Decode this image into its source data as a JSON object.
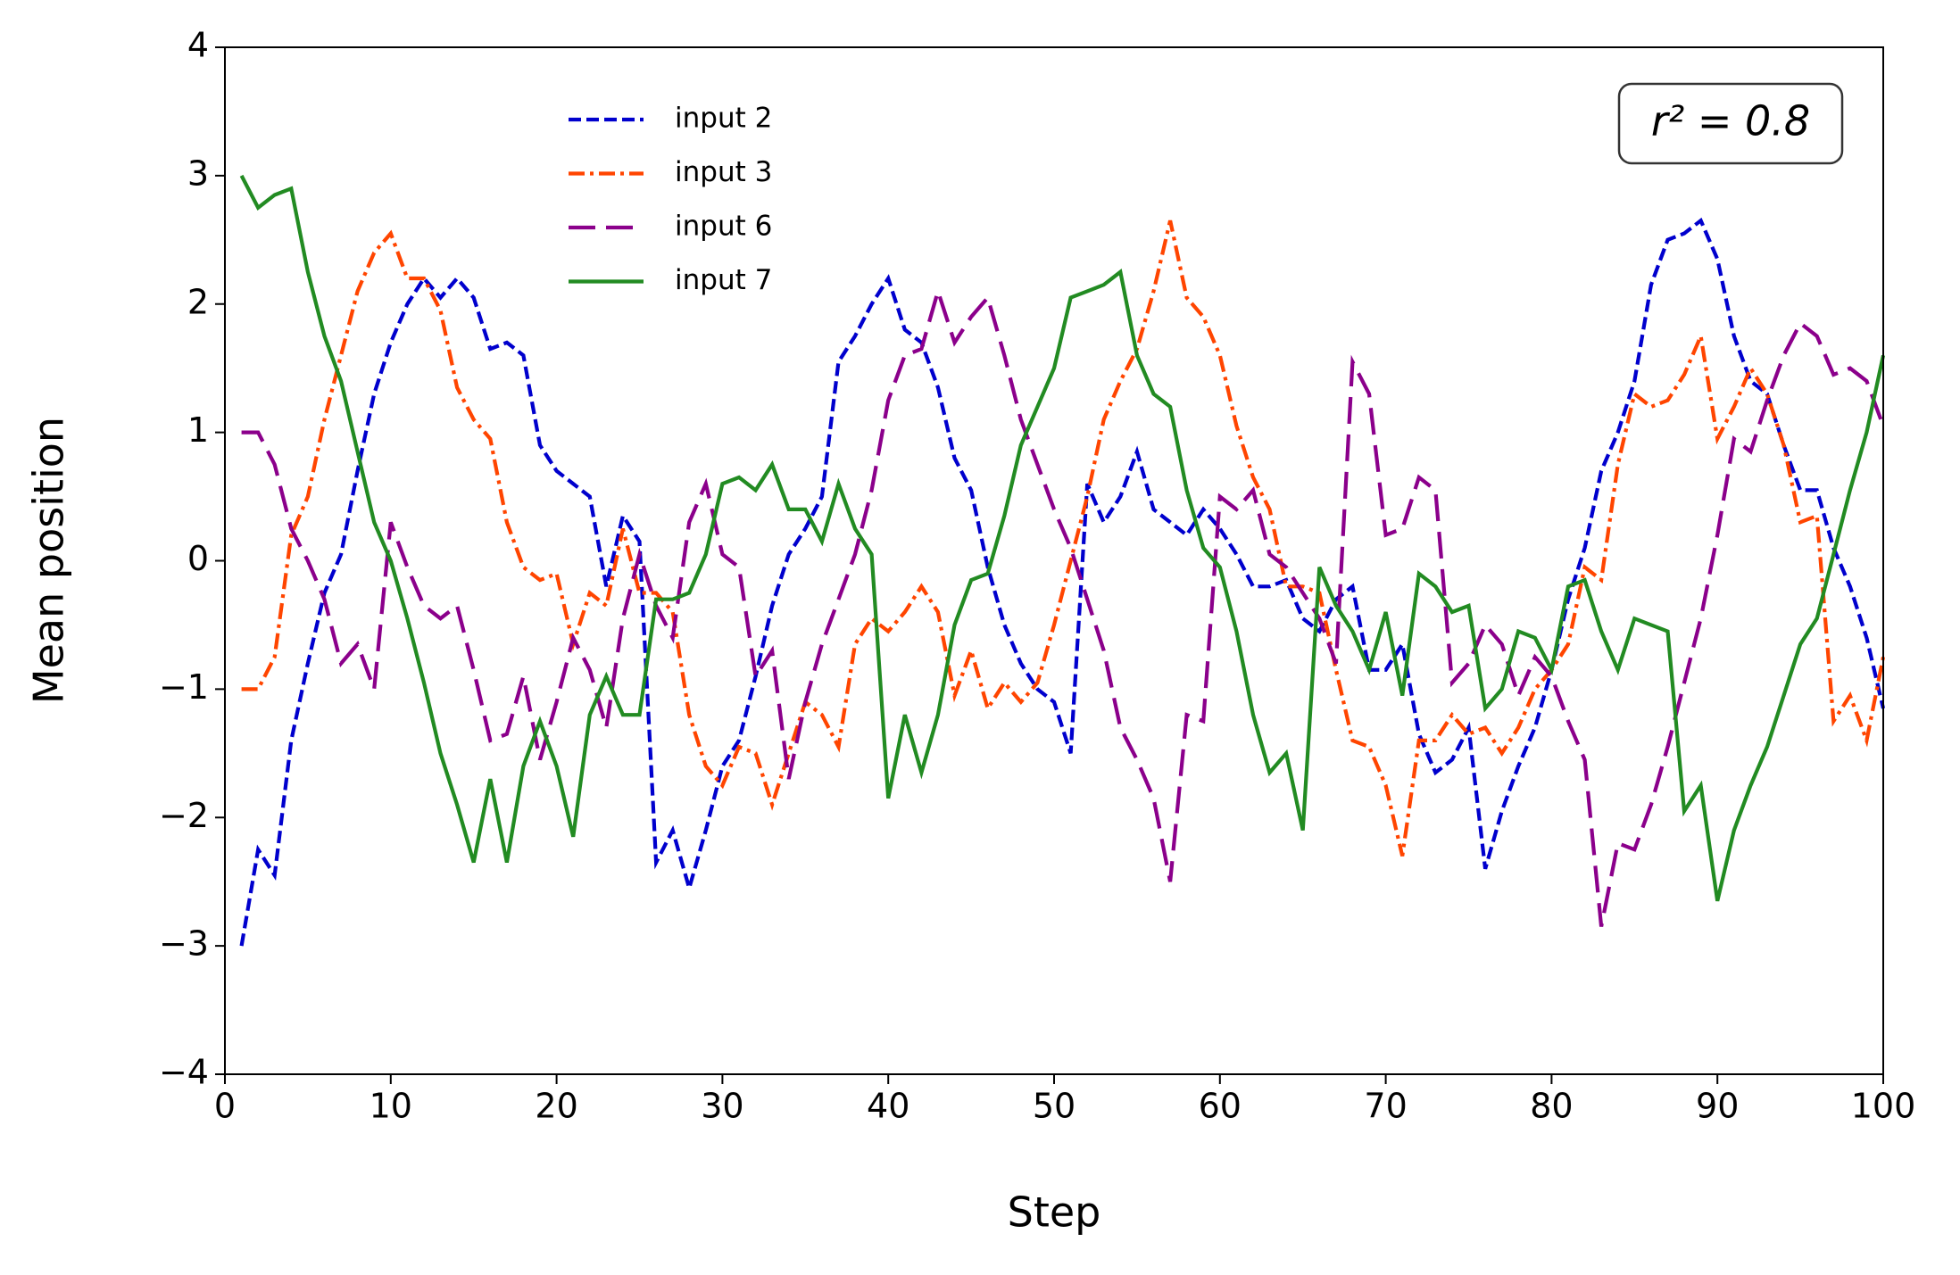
{
  "chart_data": {
    "type": "line",
    "xlabel": "Step",
    "ylabel": "Mean position",
    "annotation": "r² = 0.8",
    "legend": "upper left",
    "xlim": [
      0,
      100
    ],
    "ylim": [
      -4,
      4
    ],
    "xticks": [
      0,
      10,
      20,
      30,
      40,
      50,
      60,
      70,
      80,
      90,
      100
    ],
    "yticks": [
      {
        "value": -4,
        "label": "−4"
      },
      {
        "value": -3,
        "label": "−3"
      },
      {
        "value": -2,
        "label": "−2"
      },
      {
        "value": -1,
        "label": "−1"
      },
      0,
      1,
      2,
      3,
      4
    ],
    "x": [
      1,
      2,
      3,
      4,
      5,
      6,
      7,
      8,
      9,
      10,
      11,
      12,
      13,
      14,
      15,
      16,
      17,
      18,
      19,
      20,
      21,
      22,
      23,
      24,
      25,
      26,
      27,
      28,
      29,
      30,
      31,
      32,
      33,
      34,
      35,
      36,
      37,
      38,
      39,
      40,
      41,
      42,
      43,
      44,
      45,
      46,
      47,
      48,
      49,
      50,
      51,
      52,
      53,
      54,
      55,
      56,
      57,
      58,
      59,
      60,
      61,
      62,
      63,
      64,
      65,
      66,
      67,
      68,
      69,
      70,
      71,
      72,
      73,
      74,
      75,
      76,
      77,
      78,
      79,
      80,
      81,
      82,
      83,
      84,
      85,
      86,
      87,
      88,
      89,
      90,
      91,
      92,
      93,
      94,
      95,
      96,
      97,
      98,
      99,
      100
    ],
    "series": [
      {
        "name": "input 2",
        "color": "#0000cd",
        "dash": "dashed",
        "values": [
          -3,
          -2.25,
          -2.45,
          -1.4,
          -0.8,
          -0.25,
          0.05,
          0.7,
          1.3,
          1.7,
          2.0,
          2.2,
          2.05,
          2.2,
          2.05,
          1.65,
          1.7,
          1.6,
          0.9,
          0.7,
          0.6,
          0.5,
          -0.2,
          0.35,
          0.15,
          -2.35,
          -2.1,
          -2.55,
          -2.1,
          -1.6,
          -1.4,
          -0.9,
          -0.35,
          0.05,
          0.25,
          0.5,
          1.55,
          1.75,
          2.0,
          2.2,
          1.8,
          1.7,
          1.35,
          0.8,
          0.55,
          -0.05,
          -0.5,
          -0.8,
          -1.0,
          -1.1,
          -1.5,
          0.6,
          0.3,
          0.5,
          0.85,
          0.4,
          0.3,
          0.2,
          0.4,
          0.25,
          0.05,
          -0.2,
          -0.2,
          -0.15,
          -0.45,
          -0.55,
          -0.3,
          -0.2,
          -0.85,
          -0.85,
          -0.65,
          -1.35,
          -1.65,
          -1.55,
          -1.3,
          -2.4,
          -1.95,
          -1.6,
          -1.3,
          -0.85,
          -0.3,
          0.1,
          0.7,
          1.0,
          1.4,
          2.15,
          2.5,
          2.55,
          2.65,
          2.35,
          1.75,
          1.4,
          1.3,
          0.9,
          0.55,
          0.55,
          0.1,
          -0.2,
          -0.6,
          -1.15
        ]
      },
      {
        "name": "input 3",
        "color": "#ff4500",
        "dash": "dashdot",
        "values": [
          -1,
          -1,
          -0.75,
          0.2,
          0.5,
          1.1,
          1.6,
          2.1,
          2.4,
          2.55,
          2.2,
          2.2,
          1.95,
          1.35,
          1.1,
          0.95,
          0.3,
          -0.05,
          -0.15,
          -0.1,
          -0.65,
          -0.25,
          -0.35,
          0.25,
          -0.25,
          -0.25,
          -0.4,
          -1.2,
          -1.6,
          -1.75,
          -1.45,
          -1.5,
          -1.9,
          -1.5,
          -1.1,
          -1.2,
          -1.45,
          -0.65,
          -0.45,
          -0.55,
          -0.4,
          -0.2,
          -0.4,
          -1.05,
          -0.7,
          -1.15,
          -0.95,
          -1.1,
          -0.95,
          -0.5,
          0,
          0.5,
          1.1,
          1.4,
          1.65,
          2.1,
          2.65,
          2.05,
          1.9,
          1.6,
          1.05,
          0.65,
          0.4,
          -0.2,
          -0.2,
          -0.25,
          -0.85,
          -1.4,
          -1.45,
          -1.75,
          -2.3,
          -1.4,
          -1.4,
          -1.2,
          -1.35,
          -1.3,
          -1.5,
          -1.3,
          -1.0,
          -0.85,
          -0.65,
          -0.05,
          -0.15,
          0.75,
          1.3,
          1.2,
          1.25,
          1.45,
          1.75,
          0.95,
          1.2,
          1.5,
          1.3,
          0.9,
          0.3,
          0.35,
          -1.25,
          -1.05,
          -1.4,
          -0.75
        ]
      },
      {
        "name": "input 6",
        "color": "#8b008b",
        "dash": "longdash",
        "values": [
          1,
          1,
          0.75,
          0.25,
          0,
          -0.3,
          -0.8,
          -0.65,
          -1.0,
          0.3,
          -0.05,
          -0.35,
          -0.45,
          -0.35,
          -0.85,
          -1.4,
          -1.35,
          -0.9,
          -1.55,
          -1.1,
          -0.6,
          -0.85,
          -1.3,
          -0.45,
          0.05,
          -0.35,
          -0.6,
          0.3,
          0.6,
          0.05,
          -0.05,
          -0.9,
          -0.7,
          -1.7,
          -1.1,
          -0.65,
          -0.3,
          0.05,
          0.55,
          1.25,
          1.6,
          1.65,
          2.1,
          1.7,
          1.9,
          2.05,
          1.6,
          1.1,
          0.75,
          0.4,
          0.1,
          -0.3,
          -0.7,
          -1.3,
          -1.55,
          -1.85,
          -2.5,
          -1.2,
          -1.25,
          0.5,
          0.4,
          0.55,
          0.05,
          -0.05,
          -0.25,
          -0.45,
          -0.8,
          1.55,
          1.3,
          0.2,
          0.25,
          0.65,
          0.55,
          -0.95,
          -0.8,
          -0.5,
          -0.65,
          -1.05,
          -0.75,
          -0.9,
          -1.25,
          -1.55,
          -2.85,
          -2.2,
          -2.25,
          -1.9,
          -1.45,
          -0.95,
          -0.45,
          0.2,
          0.95,
          0.85,
          1.25,
          1.6,
          1.85,
          1.75,
          1.45,
          1.5,
          1.4,
          1.05
        ]
      },
      {
        "name": "input 7",
        "color": "#228b22",
        "dash": "solid",
        "values": [
          3,
          2.75,
          2.85,
          2.9,
          2.25,
          1.75,
          1.4,
          0.85,
          0.3,
          0,
          -0.45,
          -0.95,
          -1.5,
          -1.9,
          -2.35,
          -1.7,
          -2.35,
          -1.6,
          -1.25,
          -1.6,
          -2.15,
          -1.2,
          -0.9,
          -1.2,
          -1.2,
          -0.3,
          -0.3,
          -0.25,
          0.05,
          0.6,
          0.65,
          0.55,
          0.75,
          0.4,
          0.4,
          0.15,
          0.6,
          0.25,
          0.05,
          -1.85,
          -1.2,
          -1.65,
          -1.2,
          -0.5,
          -0.15,
          -0.1,
          0.35,
          0.9,
          1.2,
          1.5,
          2.05,
          2.1,
          2.15,
          2.25,
          1.6,
          1.3,
          1.2,
          0.55,
          0.1,
          -0.05,
          -0.55,
          -1.2,
          -1.65,
          -1.5,
          -2.1,
          -0.05,
          -0.35,
          -0.55,
          -0.85,
          -0.4,
          -1.05,
          -0.1,
          -0.2,
          -0.4,
          -0.35,
          -1.15,
          -1.0,
          -0.55,
          -0.6,
          -0.85,
          -0.2,
          -0.15,
          -0.55,
          -0.85,
          -0.45,
          -0.5,
          -0.55,
          -1.95,
          -1.75,
          -2.65,
          -2.1,
          -1.75,
          -1.45,
          -1.05,
          -0.65,
          -0.45,
          0.05,
          0.55,
          1.0,
          1.6
        ]
      }
    ]
  }
}
